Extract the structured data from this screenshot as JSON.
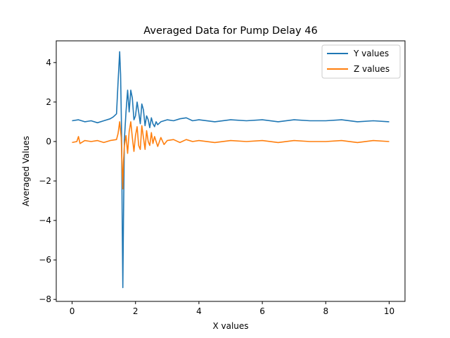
{
  "chart_data": {
    "type": "line",
    "title": "Averaged Data for Pump Delay 46",
    "xlabel": "X values",
    "ylabel": "Averaged Values",
    "xlim": [
      -0.5,
      10.5
    ],
    "ylim": [
      -8.1,
      5.1
    ],
    "xticks": [
      0,
      2,
      4,
      6,
      8,
      10
    ],
    "xtick_labels": [
      "0",
      "2",
      "4",
      "6",
      "8",
      "10"
    ],
    "yticks": [
      4,
      2,
      0,
      -2,
      -4,
      -6,
      -8
    ],
    "ytick_labels": [
      "4",
      "2",
      "0",
      "−2",
      "−4",
      "−6",
      "−8"
    ],
    "grid": false,
    "legend_position": "top-right",
    "series": [
      {
        "name": "Y values",
        "color": "#1f77b4",
        "x": [
          0,
          0.2,
          0.4,
          0.6,
          0.8,
          1.0,
          1.2,
          1.3,
          1.4,
          1.45,
          1.5,
          1.53,
          1.56,
          1.58,
          1.6,
          1.62,
          1.65,
          1.7,
          1.75,
          1.8,
          1.85,
          1.9,
          1.95,
          2.0,
          2.05,
          2.1,
          2.15,
          2.2,
          2.25,
          2.3,
          2.35,
          2.4,
          2.45,
          2.5,
          2.55,
          2.6,
          2.65,
          2.7,
          2.8,
          2.9,
          3.0,
          3.2,
          3.4,
          3.6,
          3.8,
          4.0,
          4.5,
          5.0,
          5.5,
          6.0,
          6.5,
          7.0,
          7.5,
          8.0,
          8.5,
          9.0,
          9.5,
          10.0
        ],
        "values": [
          1.05,
          1.1,
          1.0,
          1.05,
          0.95,
          1.05,
          1.15,
          1.25,
          1.4,
          3.0,
          4.55,
          3.4,
          0.5,
          -4.0,
          -7.4,
          -4.0,
          0.1,
          1.5,
          2.6,
          1.5,
          2.6,
          2.2,
          1.1,
          1.3,
          2.0,
          1.5,
          0.9,
          1.9,
          1.6,
          0.8,
          1.3,
          1.1,
          0.7,
          1.2,
          0.9,
          0.75,
          1.0,
          0.85,
          1.0,
          1.05,
          1.1,
          1.05,
          1.15,
          1.2,
          1.05,
          1.1,
          1.0,
          1.1,
          1.05,
          1.1,
          1.0,
          1.1,
          1.05,
          1.05,
          1.1,
          1.0,
          1.05,
          1.0
        ]
      },
      {
        "name": "Z values",
        "color": "#ff7f0e",
        "x": [
          0,
          0.15,
          0.2,
          0.25,
          0.4,
          0.6,
          0.8,
          1.0,
          1.2,
          1.4,
          1.45,
          1.5,
          1.55,
          1.58,
          1.6,
          1.62,
          1.65,
          1.7,
          1.75,
          1.8,
          1.85,
          1.9,
          1.95,
          2.0,
          2.05,
          2.1,
          2.15,
          2.2,
          2.25,
          2.3,
          2.35,
          2.4,
          2.45,
          2.5,
          2.55,
          2.6,
          2.7,
          2.8,
          2.9,
          3.0,
          3.2,
          3.4,
          3.6,
          3.8,
          4.0,
          4.5,
          5.0,
          5.5,
          6.0,
          6.5,
          7.0,
          7.5,
          8.0,
          8.5,
          9.0,
          9.5,
          10.0
        ],
        "values": [
          -0.05,
          0.0,
          0.25,
          -0.1,
          0.05,
          0.0,
          0.05,
          -0.05,
          0.05,
          0.1,
          0.4,
          1.0,
          0.2,
          -1.5,
          -2.4,
          -1.0,
          -0.2,
          0.3,
          -0.6,
          0.5,
          1.0,
          0.2,
          -0.5,
          0.3,
          0.75,
          -0.2,
          -0.4,
          0.8,
          0.2,
          -0.4,
          0.55,
          0.0,
          -0.2,
          0.45,
          -0.1,
          0.25,
          -0.25,
          0.2,
          -0.15,
          0.05,
          0.1,
          -0.05,
          0.1,
          0.0,
          0.05,
          -0.05,
          0.05,
          0.0,
          0.05,
          -0.05,
          0.05,
          0.0,
          0.0,
          0.05,
          -0.05,
          0.05,
          0.0
        ]
      }
    ]
  }
}
